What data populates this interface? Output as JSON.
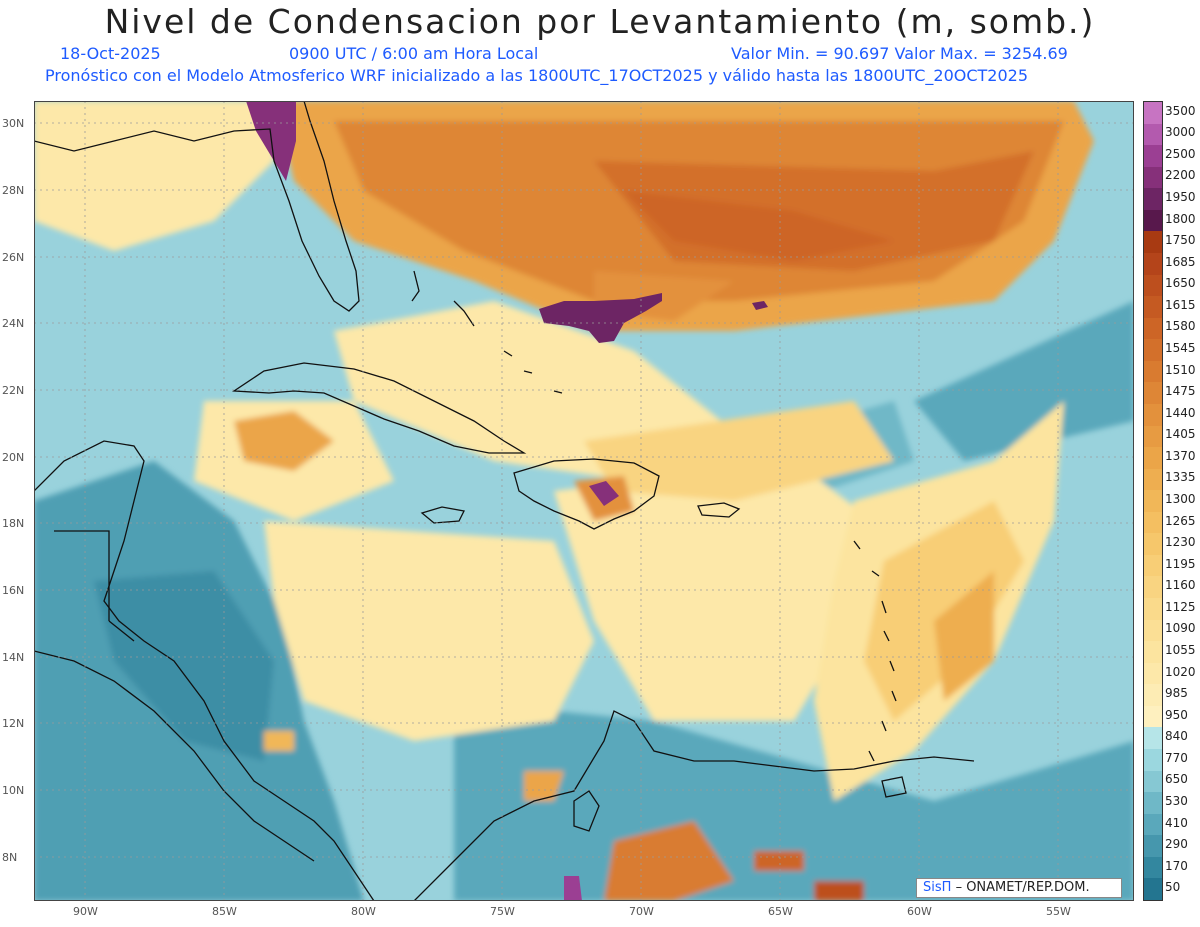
{
  "header": {
    "title": "Nivel de Condensacion por Levantamiento (m, somb.)",
    "date": "18-Oct-2025",
    "time": "0900 UTC / 6:00 am Hora Local",
    "minmax": "Valor Min. = 90.697  Valor Max. = 3254.69",
    "info": "Pronóstico con el Modelo Atmosferico WRF inicializado a las 1800UTC_17OCT2025 y válido hasta las  1800UTC_20OCT2025"
  },
  "credit": {
    "brand": "SisΠ",
    "org": "– ONAMET/REP.DOM."
  },
  "axes": {
    "lat_labels": [
      "30N",
      "28N",
      "26N",
      "24N",
      "22N",
      "20N",
      "18N",
      "16N",
      "14N",
      "12N",
      "10N",
      "8N"
    ],
    "lon_labels": [
      "90W",
      "85W",
      "80W",
      "75W",
      "70W",
      "65W",
      "60W",
      "55W"
    ]
  },
  "legend": {
    "labels": [
      "3500",
      "3000",
      "2500",
      "2200",
      "1950",
      "1800",
      "1750",
      "1685",
      "1650",
      "1615",
      "1580",
      "1545",
      "1510",
      "1475",
      "1440",
      "1405",
      "1370",
      "1335",
      "1300",
      "1265",
      "1230",
      "1195",
      "1160",
      "1125",
      "1090",
      "1055",
      "1020",
      "985",
      "950",
      "840",
      "770",
      "650",
      "530",
      "410",
      "290",
      "170",
      "50"
    ],
    "colors": [
      "#c774c2",
      "#b35aae",
      "#9b3f93",
      "#86307a",
      "#6d2564",
      "#58184c",
      "#a83a12",
      "#b4441a",
      "#bd4f1e",
      "#c55a22",
      "#cd6526",
      "#d3702b",
      "#d97b30",
      "#de8636",
      "#e3913c",
      "#e79b42",
      "#eba548",
      "#eeae50",
      "#f1b758",
      "#f4bf61",
      "#f6c76b",
      "#f8ce76",
      "#f9d481",
      "#fada8b",
      "#fbdf95",
      "#fce49f",
      "#fde8a9",
      "#fdecb4",
      "#fef0bf",
      "#b6e5e8",
      "#9bd7df",
      "#86c8d3",
      "#6fb8c7",
      "#5aa8bb",
      "#4697ad",
      "#33879f",
      "#237590"
    ]
  }
}
